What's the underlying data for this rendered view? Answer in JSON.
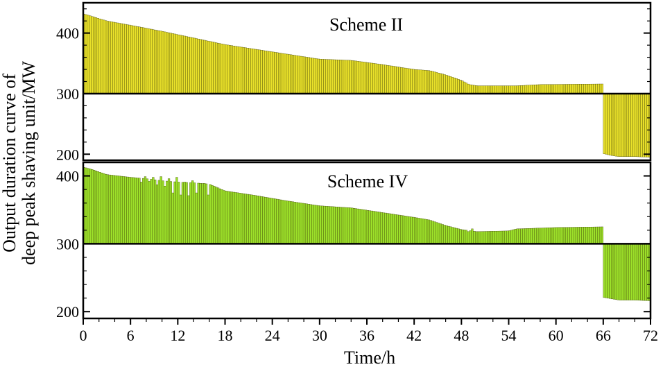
{
  "chart_data": {
    "type": "bar",
    "ylabel_line1": "Output duration curve of",
    "ylabel_line2": "deep peak shaving unit/MW",
    "xlabel": "Time/h",
    "xlim": [
      0,
      72
    ],
    "xticks": [
      "0",
      "6",
      "12",
      "18",
      "24",
      "30",
      "36",
      "42",
      "48",
      "54",
      "60",
      "66",
      "72"
    ],
    "baseline": 300,
    "panels": [
      {
        "title": "Scheme II",
        "color": "#e8e02a",
        "ylim": [
          190,
          450
        ],
        "yticks": [
          "200",
          "300",
          "400"
        ],
        "ytick_values": [
          200,
          300,
          400
        ],
        "anchors": [
          [
            0,
            432
          ],
          [
            1,
            428
          ],
          [
            3,
            420
          ],
          [
            6,
            413
          ],
          [
            10,
            403
          ],
          [
            14,
            392
          ],
          [
            18,
            381
          ],
          [
            22,
            373
          ],
          [
            26,
            365
          ],
          [
            30,
            357
          ],
          [
            34,
            355
          ],
          [
            38,
            348
          ],
          [
            42,
            340
          ],
          [
            44,
            338
          ],
          [
            46,
            331
          ],
          [
            48,
            322
          ],
          [
            49,
            315
          ],
          [
            50,
            313
          ],
          [
            55,
            313
          ],
          [
            58,
            315
          ],
          [
            65.9,
            316
          ],
          [
            66,
            201
          ],
          [
            67,
            198
          ],
          [
            68,
            196
          ],
          [
            70,
            196
          ],
          [
            72,
            195
          ]
        ]
      },
      {
        "title": "Scheme IV",
        "color": "#9ce02a",
        "ylim": [
          190,
          420
        ],
        "yticks": [
          "200",
          "300",
          "400"
        ],
        "ytick_values": [
          200,
          300,
          400
        ],
        "anchors": [
          [
            0,
            413
          ],
          [
            1,
            410
          ],
          [
            3,
            402
          ],
          [
            6,
            398
          ],
          [
            8,
            396
          ],
          [
            10,
            393
          ],
          [
            12,
            391
          ],
          [
            14,
            390
          ],
          [
            16,
            388
          ],
          [
            18,
            378
          ],
          [
            22,
            371
          ],
          [
            26,
            363
          ],
          [
            30,
            356
          ],
          [
            34,
            353
          ],
          [
            38,
            346
          ],
          [
            42,
            339
          ],
          [
            44,
            335
          ],
          [
            46,
            327
          ],
          [
            48,
            321
          ],
          [
            50,
            318
          ],
          [
            54,
            319
          ],
          [
            55,
            322
          ],
          [
            60,
            324
          ],
          [
            65.9,
            325
          ],
          [
            66,
            221
          ],
          [
            67,
            219
          ],
          [
            68,
            217
          ],
          [
            70,
            217
          ],
          [
            72,
            216
          ]
        ],
        "dips": [
          [
            6.75,
            397
          ],
          [
            7.25,
            391
          ],
          [
            7.75,
            399
          ],
          [
            8.25,
            392
          ],
          [
            8.75,
            398
          ],
          [
            9.25,
            387
          ],
          [
            9.75,
            399
          ],
          [
            10.25,
            385
          ],
          [
            10.75,
            396
          ],
          [
            11.25,
            375
          ],
          [
            11.75,
            398
          ],
          [
            12.25,
            372
          ],
          [
            12.75,
            391
          ],
          [
            13.25,
            371
          ],
          [
            13.75,
            393
          ],
          [
            14.25,
            375
          ],
          [
            15.25,
            389
          ],
          [
            15.75,
            372
          ],
          [
            48.75,
            318
          ],
          [
            49.25,
            322
          ],
          [
            49.75,
            318
          ]
        ]
      }
    ]
  }
}
